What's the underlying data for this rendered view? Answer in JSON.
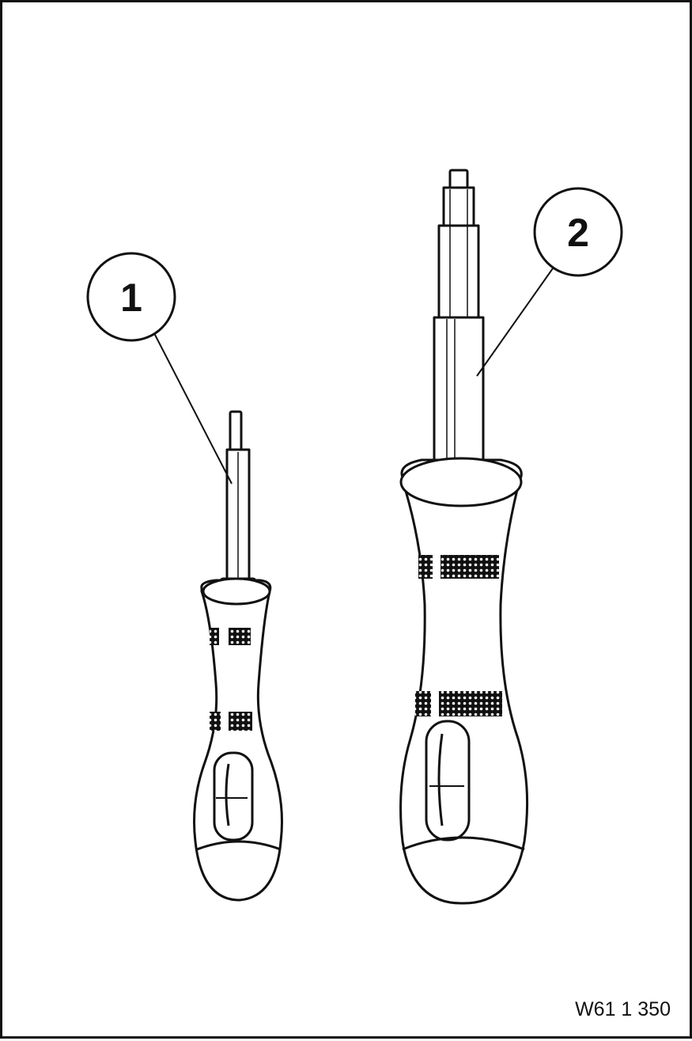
{
  "figure": {
    "reference_code": "W61 1 350",
    "callouts": [
      {
        "id": "1",
        "label": "1"
      },
      {
        "id": "2",
        "label": "2"
      }
    ],
    "colors": {
      "line": "#111111",
      "background": "#ffffff"
    }
  }
}
